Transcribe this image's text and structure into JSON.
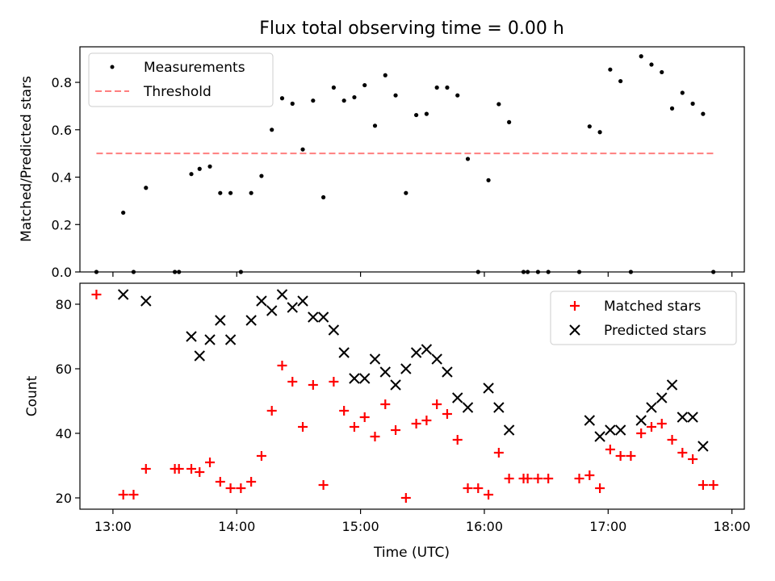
{
  "chart_data": [
    {
      "type": "scatter",
      "title": "Flux total observing time = 0.00 h",
      "xlabel": "",
      "ylabel": "Matched/Predicted stars",
      "ylim": [
        0,
        0.95
      ],
      "xlim": [
        "12:44",
        "18:06"
      ],
      "yticks": [
        "0.0",
        "0.2",
        "0.4",
        "0.6",
        "0.8"
      ],
      "grid": false,
      "legend": "top-left",
      "series": [
        {
          "name": "Measurements",
          "marker": "dot",
          "color": "#000000",
          "points": [
            [
              "12:52",
              0.0
            ],
            [
              "13:05",
              0.25
            ],
            [
              "13:10",
              0.0
            ],
            [
              "13:16",
              0.355
            ],
            [
              "13:30",
              0.0
            ],
            [
              "13:32",
              0.0
            ],
            [
              "13:38",
              0.413
            ],
            [
              "13:42",
              0.435
            ],
            [
              "13:47",
              0.445
            ],
            [
              "13:52",
              0.333
            ],
            [
              "13:57",
              0.333
            ],
            [
              "14:02",
              0.0
            ],
            [
              "14:07",
              0.333
            ],
            [
              "14:12",
              0.405
            ],
            [
              "14:17",
              0.6
            ],
            [
              "14:22",
              0.733
            ],
            [
              "14:27",
              0.71
            ],
            [
              "14:32",
              0.517
            ],
            [
              "14:37",
              0.723
            ],
            [
              "14:42",
              0.315
            ],
            [
              "14:47",
              0.778
            ],
            [
              "14:52",
              0.723
            ],
            [
              "14:57",
              0.737
            ],
            [
              "15:02",
              0.788
            ],
            [
              "15:07",
              0.617
            ],
            [
              "15:12",
              0.83
            ],
            [
              "15:17",
              0.745
            ],
            [
              "15:22",
              0.333
            ],
            [
              "15:27",
              0.662
            ],
            [
              "15:32",
              0.667
            ],
            [
              "15:37",
              0.778
            ],
            [
              "15:42",
              0.778
            ],
            [
              "15:47",
              0.745
            ],
            [
              "15:52",
              0.477
            ],
            [
              "15:57",
              0.0
            ],
            [
              "16:02",
              0.387
            ],
            [
              "16:07",
              0.708
            ],
            [
              "16:12",
              0.632
            ],
            [
              "16:19",
              0.0
            ],
            [
              "16:21",
              0.0
            ],
            [
              "16:26",
              0.0
            ],
            [
              "16:31",
              0.0
            ],
            [
              "16:46",
              0.0
            ],
            [
              "16:51",
              0.614
            ],
            [
              "16:56",
              0.59
            ],
            [
              "17:01",
              0.854
            ],
            [
              "17:06",
              0.805
            ],
            [
              "17:11",
              0.0
            ],
            [
              "17:16",
              0.91
            ],
            [
              "17:21",
              0.875
            ],
            [
              "17:26",
              0.843
            ],
            [
              "17:31",
              0.69
            ],
            [
              "17:36",
              0.756
            ],
            [
              "17:41",
              0.71
            ],
            [
              "17:46",
              0.667
            ],
            [
              "17:51",
              0.0
            ]
          ]
        },
        {
          "name": "Threshold",
          "marker": "dashed-line",
          "color": "#ff7f7f",
          "points": [
            [
              "12:52",
              0.5
            ],
            [
              "17:51",
              0.5
            ]
          ]
        }
      ]
    },
    {
      "type": "scatter",
      "title": "",
      "xlabel": "Time (UTC)",
      "ylabel": "Count",
      "ylim": [
        16.5,
        86.5
      ],
      "xlim": [
        "12:44",
        "18:06"
      ],
      "xticks": [
        "13:00",
        "14:00",
        "15:00",
        "16:00",
        "17:00",
        "18:00"
      ],
      "yticks": [
        "20",
        "40",
        "60",
        "80"
      ],
      "grid": false,
      "legend": "top-right",
      "series": [
        {
          "name": "Matched stars",
          "marker": "plus",
          "color": "#ff0000",
          "points": [
            [
              "12:52",
              83
            ],
            [
              "13:05",
              21
            ],
            [
              "13:10",
              21
            ],
            [
              "13:16",
              29
            ],
            [
              "13:30",
              29
            ],
            [
              "13:32",
              29
            ],
            [
              "13:38",
              29
            ],
            [
              "13:42",
              28
            ],
            [
              "13:47",
              31
            ],
            [
              "13:52",
              25
            ],
            [
              "13:57",
              23
            ],
            [
              "14:02",
              23
            ],
            [
              "14:07",
              25
            ],
            [
              "14:12",
              33
            ],
            [
              "14:17",
              47
            ],
            [
              "14:22",
              61
            ],
            [
              "14:27",
              56
            ],
            [
              "14:32",
              42
            ],
            [
              "14:37",
              55
            ],
            [
              "14:42",
              24
            ],
            [
              "14:47",
              56
            ],
            [
              "14:52",
              47
            ],
            [
              "14:57",
              42
            ],
            [
              "15:02",
              45
            ],
            [
              "15:07",
              39
            ],
            [
              "15:12",
              49
            ],
            [
              "15:17",
              41
            ],
            [
              "15:22",
              20
            ],
            [
              "15:27",
              43
            ],
            [
              "15:32",
              44
            ],
            [
              "15:37",
              49
            ],
            [
              "15:42",
              46
            ],
            [
              "15:47",
              38
            ],
            [
              "15:52",
              23
            ],
            [
              "15:57",
              23
            ],
            [
              "16:02",
              21
            ],
            [
              "16:07",
              34
            ],
            [
              "16:12",
              26
            ],
            [
              "16:19",
              26
            ],
            [
              "16:21",
              26
            ],
            [
              "16:26",
              26
            ],
            [
              "16:31",
              26
            ],
            [
              "16:46",
              26
            ],
            [
              "16:51",
              27
            ],
            [
              "16:56",
              23
            ],
            [
              "17:01",
              35
            ],
            [
              "17:06",
              33
            ],
            [
              "17:11",
              33
            ],
            [
              "17:16",
              40
            ],
            [
              "17:21",
              42
            ],
            [
              "17:26",
              43
            ],
            [
              "17:31",
              38
            ],
            [
              "17:36",
              34
            ],
            [
              "17:41",
              32
            ],
            [
              "17:46",
              24
            ],
            [
              "17:51",
              24
            ]
          ]
        },
        {
          "name": "Predicted stars",
          "marker": "x",
          "color": "#000000",
          "points": [
            [
              "13:05",
              83
            ],
            [
              "13:16",
              81
            ],
            [
              "13:38",
              70
            ],
            [
              "13:42",
              64
            ],
            [
              "13:47",
              69
            ],
            [
              "13:52",
              75
            ],
            [
              "13:57",
              69
            ],
            [
              "14:07",
              75
            ],
            [
              "14:12",
              81
            ],
            [
              "14:17",
              78
            ],
            [
              "14:22",
              83
            ],
            [
              "14:27",
              79
            ],
            [
              "14:32",
              81
            ],
            [
              "14:37",
              76
            ],
            [
              "14:42",
              76
            ],
            [
              "14:47",
              72
            ],
            [
              "14:52",
              65
            ],
            [
              "14:57",
              57
            ],
            [
              "15:02",
              57
            ],
            [
              "15:07",
              63
            ],
            [
              "15:12",
              59
            ],
            [
              "15:17",
              55
            ],
            [
              "15:22",
              60
            ],
            [
              "15:27",
              65
            ],
            [
              "15:32",
              66
            ],
            [
              "15:37",
              63
            ],
            [
              "15:42",
              59
            ],
            [
              "15:47",
              51
            ],
            [
              "15:52",
              48
            ],
            [
              "16:02",
              54
            ],
            [
              "16:07",
              48
            ],
            [
              "16:12",
              41
            ],
            [
              "16:51",
              44
            ],
            [
              "16:56",
              39
            ],
            [
              "17:01",
              41
            ],
            [
              "17:06",
              41
            ],
            [
              "17:16",
              44
            ],
            [
              "17:21",
              48
            ],
            [
              "17:26",
              51
            ],
            [
              "17:31",
              55
            ],
            [
              "17:36",
              45
            ],
            [
              "17:41",
              45
            ],
            [
              "17:46",
              36
            ]
          ]
        }
      ]
    }
  ]
}
